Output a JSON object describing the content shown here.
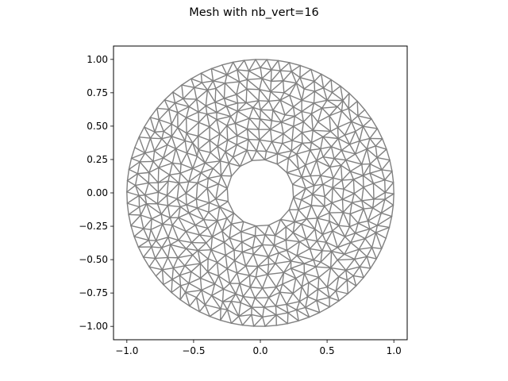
{
  "chart_data": {
    "type": "mesh",
    "title": "Mesh with nb_vert=16",
    "xlabel": "",
    "ylabel": "",
    "xlim": [
      -1.1,
      1.1
    ],
    "ylim": [
      -1.1,
      1.1
    ],
    "aspect": "equal",
    "grid": false,
    "mesh_color": "#808080",
    "outer_radius": 1.0,
    "inner_radius": 0.25,
    "inner_polygon_vertices": 16,
    "x_ticks": [
      -1.0,
      -0.5,
      0.0,
      0.5,
      1.0
    ],
    "x_tick_labels": [
      "−1.0",
      "−0.5",
      "0.0",
      "0.5",
      "1.0"
    ],
    "y_ticks": [
      1.0,
      0.75,
      0.5,
      0.25,
      0.0,
      -0.25,
      -0.5,
      -0.75,
      -1.0
    ],
    "y_tick_labels": [
      "1.00",
      "0.75",
      "0.50",
      "0.25",
      "0.00",
      "−0.25",
      "−0.50",
      "−0.75",
      "−1.00"
    ]
  }
}
